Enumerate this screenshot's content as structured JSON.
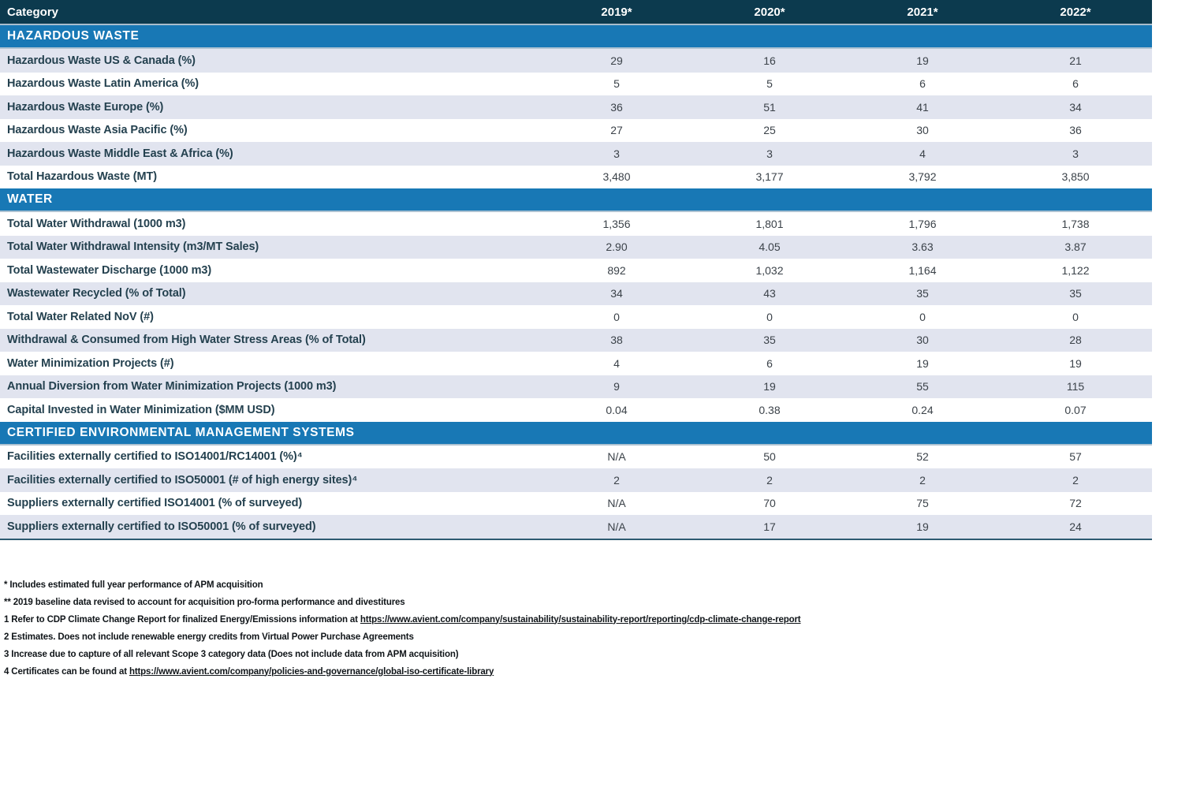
{
  "colors": {
    "header_bg": "#0c3a4e",
    "section_bg": "#1878b5",
    "stripe": "#e1e4ef",
    "table_border": "#2d5a71"
  },
  "table": {
    "header": {
      "category": "Category",
      "years": [
        "2019*",
        "2020*",
        "2021*",
        "2022*"
      ]
    },
    "sections": [
      {
        "title": "HAZARDOUS WASTE",
        "rows": [
          {
            "label": "Hazardous Waste US & Canada (%)",
            "values": [
              "29",
              "16",
              "19",
              "21"
            ]
          },
          {
            "label": "Hazardous Waste Latin America (%)",
            "values": [
              "5",
              "5",
              "6",
              "6"
            ]
          },
          {
            "label": "Hazardous Waste Europe (%)",
            "values": [
              "36",
              "51",
              "41",
              "34"
            ]
          },
          {
            "label": "Hazardous Waste Asia Pacific (%)",
            "values": [
              "27",
              "25",
              "30",
              "36"
            ]
          },
          {
            "label": "Hazardous Waste Middle East & Africa (%)",
            "values": [
              "3",
              "3",
              "4",
              "3"
            ]
          },
          {
            "label": "Total Hazardous Waste (MT)",
            "values": [
              "3,480",
              "3,177",
              "3,792",
              "3,850"
            ]
          }
        ]
      },
      {
        "title": "WATER",
        "rows": [
          {
            "label": "Total Water Withdrawal (1000 m3)",
            "values": [
              "1,356",
              "1,801",
              "1,796",
              "1,738"
            ]
          },
          {
            "label": "Total Water Withdrawal Intensity (m3/MT Sales)",
            "values": [
              "2.90",
              "4.05",
              "3.63",
              "3.87"
            ]
          },
          {
            "label": "Total Wastewater Discharge (1000 m3)",
            "values": [
              "892",
              "1,032",
              "1,164",
              "1,122"
            ]
          },
          {
            "label": "Wastewater Recycled (% of Total)",
            "values": [
              "34",
              "43",
              "35",
              "35"
            ]
          },
          {
            "label": "Total Water Related NoV (#)",
            "values": [
              "0",
              "0",
              "0",
              "0"
            ]
          },
          {
            "label": "Withdrawal & Consumed from High Water Stress Areas (% of Total)",
            "values": [
              "38",
              "35",
              "30",
              "28"
            ]
          },
          {
            "label": "Water Minimization Projects (#)",
            "values": [
              "4",
              "6",
              "19",
              "19"
            ]
          },
          {
            "label": "Annual Diversion from Water Minimization Projects (1000 m3)",
            "values": [
              "9",
              "19",
              "55",
              "115"
            ]
          },
          {
            "label": "Capital Invested in Water Minimization ($MM USD)",
            "values": [
              "0.04",
              "0.38",
              "0.24",
              "0.07"
            ]
          }
        ]
      },
      {
        "title": "CERTIFIED ENVIRONMENTAL MANAGEMENT SYSTEMS",
        "rows": [
          {
            "label": "Facilities externally certified to ISO14001/RC14001 (%)⁴",
            "values": [
              "N/A",
              "50",
              "52",
              "57"
            ]
          },
          {
            "label": "Facilities externally certified to ISO50001 (# of high energy sites)⁴",
            "values": [
              "2",
              "2",
              "2",
              "2"
            ]
          },
          {
            "label": "Suppliers externally certified ISO14001 (% of surveyed)",
            "values": [
              "N/A",
              "70",
              "75",
              "72"
            ]
          },
          {
            "label": "Suppliers externally certified to ISO50001 (% of surveyed)",
            "values": [
              "N/A",
              "17",
              "19",
              "24"
            ]
          }
        ]
      }
    ]
  },
  "footnotes": [
    {
      "text": "* Includes estimated full year performance of APM acquisition",
      "link": ""
    },
    {
      "text": "** 2019 baseline data revised to account for acquisition pro-forma performance and divestitures",
      "link": ""
    },
    {
      "text": "1 Refer to CDP Climate Change Report for finalized Energy/Emissions information at ",
      "link": "https://www.avient.com/company/sustainability/sustainability-report/reporting/cdp-climate-change-report"
    },
    {
      "text": "2 Estimates. Does not include renewable energy credits from Virtual Power Purchase Agreements",
      "link": ""
    },
    {
      "text": "3 Increase due to capture of all relevant Scope 3 category data (Does not include data from APM acquisition)",
      "link": ""
    },
    {
      "text": "4 Certificates can be found at ",
      "link": "https://www.avient.com/company/policies-and-governance/global-iso-certificate-library"
    }
  ]
}
